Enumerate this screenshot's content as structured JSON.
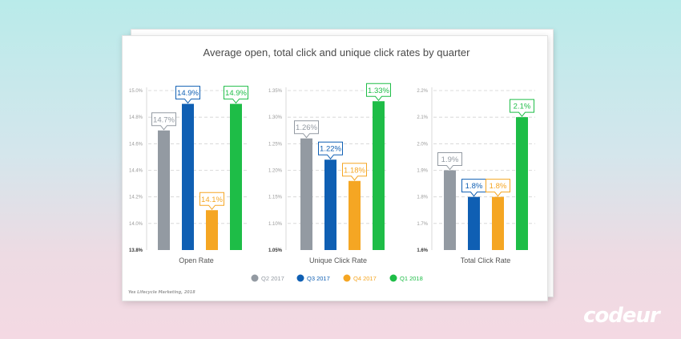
{
  "brand": "codeur",
  "source_note": "Yes Lifecycle Marketing, 2018",
  "chart_data": {
    "type": "bar",
    "title": "Average open, total click and unique click rates by quarter",
    "legend": {
      "placement": "bottom",
      "entries": [
        {
          "name": "Q2 2017",
          "color": "#939aa2"
        },
        {
          "name": "Q3 2017",
          "color": "#0f5fb3"
        },
        {
          "name": "Q4 2017",
          "color": "#f5a623"
        },
        {
          "name": "Q1 2018",
          "color": "#1ebd47"
        }
      ]
    },
    "grid": true,
    "panels": [
      {
        "xlabel": "Open Rate",
        "ylim": [
          13.8,
          15.0
        ],
        "ticks": [
          "13.8%",
          "14.0%",
          "14.2%",
          "14.4%",
          "14.6%",
          "14.8%",
          "15.0%"
        ],
        "values": [
          14.7,
          14.9,
          14.1,
          14.9
        ],
        "labels": [
          "14.7%",
          "14.9%",
          "14.1%",
          "14.9%"
        ]
      },
      {
        "xlabel": "Unique Click Rate",
        "ylim": [
          1.05,
          1.35
        ],
        "ticks": [
          "1.05%",
          "1.10%",
          "1.15%",
          "1.20%",
          "1.25%",
          "1.30%",
          "1.35%"
        ],
        "values": [
          1.26,
          1.22,
          1.18,
          1.33
        ],
        "labels": [
          "1.26%",
          "1.22%",
          "1.18%",
          "1.33%"
        ]
      },
      {
        "xlabel": "Total Click Rate",
        "ylim": [
          1.6,
          2.2
        ],
        "ticks": [
          "1.6%",
          "1.7%",
          "1.8%",
          "1.9%",
          "2.0%",
          "2.1%",
          "2.2%"
        ],
        "values": [
          1.9,
          1.8,
          1.8,
          2.1
        ],
        "labels": [
          "1.9%",
          "1.8%",
          "1.8%",
          "2.1%"
        ]
      }
    ]
  }
}
